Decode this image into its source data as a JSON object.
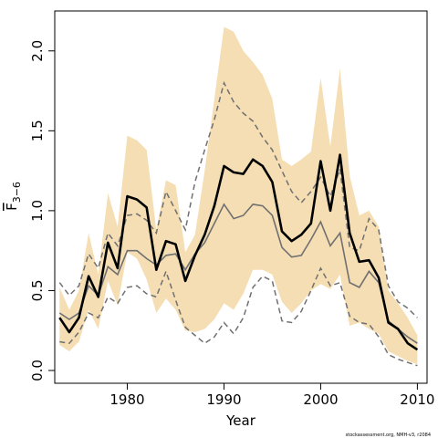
{
  "chart_data": {
    "type": "line",
    "xlabel": "Year",
    "ylabel": {
      "base": "F",
      "subscript": "3−6"
    },
    "credit": "stockassessment.org, NMH-v3, r2084",
    "xlim": [
      1972.5,
      2011
    ],
    "ylim": [
      -0.08,
      2.25
    ],
    "xticks": [
      1980,
      1990,
      2000,
      2010
    ],
    "yticks": [
      0.0,
      0.5,
      1.0,
      1.5,
      2.0
    ],
    "grid": false,
    "legend": "none",
    "colors": {
      "band": "#f5deb3",
      "estimate": "#000000",
      "secondary": "#707070",
      "bounds": "#707070"
    },
    "x": [
      1973,
      1974,
      1975,
      1976,
      1977,
      1978,
      1979,
      1980,
      1981,
      1982,
      1983,
      1984,
      1985,
      1986,
      1987,
      1988,
      1989,
      1990,
      1991,
      1992,
      1993,
      1994,
      1995,
      1996,
      1997,
      1998,
      1999,
      2000,
      2001,
      2002,
      2003,
      2004,
      2005,
      2006,
      2007,
      2008,
      2009,
      2010
    ],
    "series": [
      {
        "role": "band-upper",
        "values": [
          0.52,
          0.38,
          0.5,
          0.86,
          0.6,
          1.11,
          0.9,
          1.47,
          1.44,
          1.38,
          0.88,
          1.19,
          1.16,
          0.74,
          0.85,
          1.25,
          1.7,
          2.15,
          2.12,
          2.0,
          1.93,
          1.85,
          1.7,
          1.32,
          1.28,
          1.32,
          1.37,
          1.83,
          1.4,
          1.89,
          1.22,
          0.97,
          1.0,
          0.9,
          0.5,
          0.42,
          0.33,
          0.22
        ]
      },
      {
        "role": "band-lower",
        "values": [
          0.16,
          0.12,
          0.18,
          0.38,
          0.26,
          0.56,
          0.41,
          0.74,
          0.7,
          0.57,
          0.36,
          0.45,
          0.38,
          0.25,
          0.24,
          0.26,
          0.32,
          0.42,
          0.38,
          0.48,
          0.63,
          0.63,
          0.6,
          0.43,
          0.36,
          0.42,
          0.5,
          0.54,
          0.51,
          0.6,
          0.28,
          0.3,
          0.26,
          0.23,
          0.12,
          0.09,
          0.06,
          0.04
        ]
      },
      {
        "role": "estimate",
        "values": [
          0.33,
          0.24,
          0.33,
          0.59,
          0.46,
          0.8,
          0.64,
          1.09,
          1.07,
          1.02,
          0.63,
          0.81,
          0.79,
          0.56,
          0.72,
          0.85,
          1.03,
          1.28,
          1.24,
          1.23,
          1.32,
          1.28,
          1.18,
          0.87,
          0.81,
          0.85,
          0.92,
          1.31,
          1.0,
          1.35,
          0.86,
          0.68,
          0.69,
          0.58,
          0.3,
          0.26,
          0.17,
          0.13
        ]
      },
      {
        "role": "secondary",
        "values": [
          0.36,
          0.32,
          0.36,
          0.53,
          0.47,
          0.65,
          0.6,
          0.75,
          0.75,
          0.7,
          0.66,
          0.72,
          0.73,
          0.63,
          0.73,
          0.8,
          0.92,
          1.04,
          0.95,
          0.97,
          1.04,
          1.03,
          0.97,
          0.77,
          0.71,
          0.72,
          0.82,
          0.93,
          0.78,
          0.86,
          0.55,
          0.52,
          0.62,
          0.55,
          0.31,
          0.26,
          0.21,
          0.17
        ]
      },
      {
        "role": "upper-dashed",
        "values": [
          0.55,
          0.47,
          0.53,
          0.73,
          0.64,
          0.86,
          0.78,
          0.97,
          0.98,
          0.94,
          0.86,
          1.12,
          1.0,
          0.88,
          1.18,
          1.38,
          1.57,
          1.8,
          1.68,
          1.61,
          1.56,
          1.46,
          1.38,
          1.25,
          1.12,
          1.05,
          1.12,
          1.21,
          1.09,
          1.26,
          0.77,
          0.75,
          0.95,
          0.88,
          0.53,
          0.43,
          0.39,
          0.33
        ]
      },
      {
        "role": "lower-dashed",
        "values": [
          0.18,
          0.17,
          0.24,
          0.36,
          0.33,
          0.46,
          0.42,
          0.52,
          0.53,
          0.48,
          0.46,
          0.62,
          0.44,
          0.27,
          0.22,
          0.17,
          0.21,
          0.3,
          0.23,
          0.33,
          0.52,
          0.59,
          0.56,
          0.31,
          0.3,
          0.37,
          0.5,
          0.64,
          0.53,
          0.55,
          0.34,
          0.3,
          0.29,
          0.21,
          0.1,
          0.07,
          0.05,
          0.03
        ]
      }
    ]
  }
}
